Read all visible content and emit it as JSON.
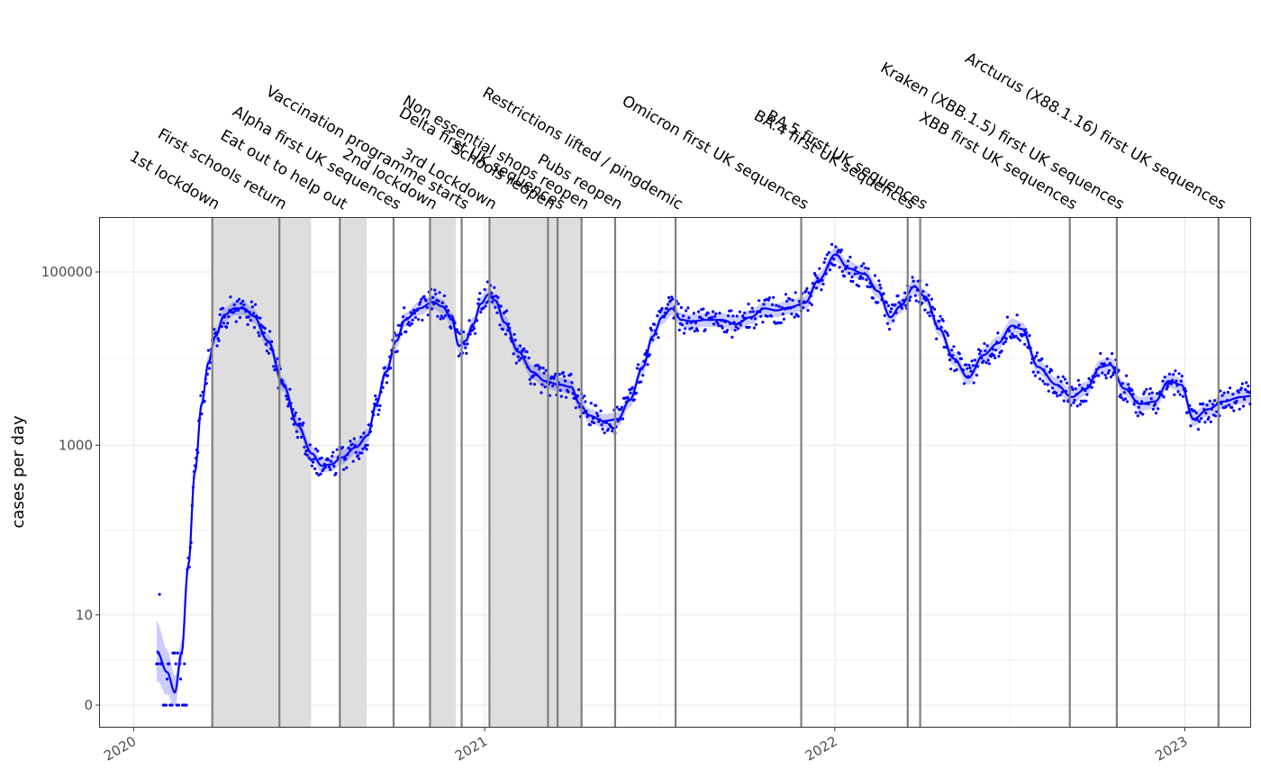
{
  "chart_data": {
    "type": "line",
    "title": "",
    "xlabel": "",
    "ylabel": "cases per day",
    "y_scale": "log (ggplot pseudo-log, breaks 0 / 10 / 1000 / 100000)",
    "y_ticks": [
      0,
      10,
      1000,
      100000
    ],
    "x_range": [
      "2019-11-26",
      "2023-03-11"
    ],
    "x_ticks": [
      {
        "date": "2020-01-01",
        "label": "2020"
      },
      {
        "date": "2021-01-01",
        "label": "2021"
      },
      {
        "date": "2022-01-01",
        "label": "2022"
      },
      {
        "date": "2023-01-01",
        "label": "2023"
      }
    ],
    "grid": true,
    "lockdown_periods": [
      {
        "start": "2020-03-23",
        "end": "2020-07-04"
      },
      {
        "start": "2020-08-03",
        "end": "2020-08-31"
      },
      {
        "start": "2020-11-05",
        "end": "2020-12-02"
      },
      {
        "start": "2021-01-06",
        "end": "2021-04-12"
      }
    ],
    "events": [
      {
        "date": "2020-03-23",
        "label": "1st lockdown"
      },
      {
        "date": "2020-06-01",
        "label": "First schools return"
      },
      {
        "date": "2020-08-03",
        "label": "Eat out to help out"
      },
      {
        "date": "2020-09-28",
        "label": "Alpha first UK sequences"
      },
      {
        "date": "2020-11-05",
        "label": "2nd lockdown"
      },
      {
        "date": "2020-12-08",
        "label": "Vaccination programme starts"
      },
      {
        "date": "2021-01-06",
        "label": "3rd Lockdown"
      },
      {
        "date": "2021-03-08",
        "label": "Schools reopen"
      },
      {
        "date": "2021-03-18",
        "label": "Delta first UK sequences"
      },
      {
        "date": "2021-04-12",
        "label": "Non essential shops reopen"
      },
      {
        "date": "2021-05-17",
        "label": "Pubs reopen"
      },
      {
        "date": "2021-07-19",
        "label": "Restrictions lifted / pingdemic"
      },
      {
        "date": "2021-11-27",
        "label": "Omicron first UK sequences"
      },
      {
        "date": "2022-03-18",
        "label": "BA.4 first UK sequences"
      },
      {
        "date": "2022-03-31",
        "label": "BA.5 first UK sequences"
      },
      {
        "date": "2022-09-03",
        "label": "XBB first UK sequences"
      },
      {
        "date": "2022-10-22",
        "label": "Kraken (XBB.1.5) first UK sequences"
      },
      {
        "date": "2023-02-05",
        "label": "Arcturus (X88.1.16) first UK sequences"
      }
    ],
    "series": [
      {
        "kind": "smoothed trend",
        "color": "#0000ff",
        "points": [
          [
            "2020-01-25",
            3.2
          ],
          [
            "2020-02-05",
            1.4
          ],
          [
            "2020-02-13",
            0.4
          ],
          [
            "2020-02-20",
            3
          ],
          [
            "2020-02-27",
            40
          ],
          [
            "2020-03-05",
            500
          ],
          [
            "2020-03-12",
            3000
          ],
          [
            "2020-03-19",
            9000
          ],
          [
            "2020-03-26",
            18000
          ],
          [
            "2020-04-05",
            32000
          ],
          [
            "2020-04-15",
            38000
          ],
          [
            "2020-04-25",
            38000
          ],
          [
            "2020-05-05",
            31000
          ],
          [
            "2020-05-20",
            16000
          ],
          [
            "2020-06-05",
            5000
          ],
          [
            "2020-06-20",
            1700
          ],
          [
            "2020-07-05",
            800
          ],
          [
            "2020-07-15",
            580
          ],
          [
            "2020-07-25",
            600
          ],
          [
            "2020-08-05",
            720
          ],
          [
            "2020-08-20",
            950
          ],
          [
            "2020-09-01",
            1300
          ],
          [
            "2020-09-10",
            3000
          ],
          [
            "2020-09-20",
            7000
          ],
          [
            "2020-10-01",
            16000
          ],
          [
            "2020-10-10",
            28000
          ],
          [
            "2020-10-25",
            38000
          ],
          [
            "2020-11-08",
            45000
          ],
          [
            "2020-11-18",
            40000
          ],
          [
            "2020-11-28",
            28000
          ],
          [
            "2020-12-05",
            14000
          ],
          [
            "2020-12-12",
            16000
          ],
          [
            "2020-12-20",
            25000
          ],
          [
            "2020-12-28",
            43000
          ],
          [
            "2021-01-05",
            55000
          ],
          [
            "2021-01-12",
            47000
          ],
          [
            "2021-01-22",
            26000
          ],
          [
            "2021-02-05",
            12000
          ],
          [
            "2021-02-20",
            7000
          ],
          [
            "2021-03-05",
            5500
          ],
          [
            "2021-03-20",
            5000
          ],
          [
            "2021-04-01",
            4700
          ],
          [
            "2021-04-10",
            3000
          ],
          [
            "2021-04-20",
            2200
          ],
          [
            "2021-05-05",
            1900
          ],
          [
            "2021-05-20",
            2000
          ],
          [
            "2021-06-01",
            3300
          ],
          [
            "2021-06-15",
            8000
          ],
          [
            "2021-06-25",
            18000
          ],
          [
            "2021-07-05",
            30000
          ],
          [
            "2021-07-15",
            38000
          ],
          [
            "2021-07-25",
            28000
          ],
          [
            "2021-08-05",
            27000
          ],
          [
            "2021-08-20",
            28000
          ],
          [
            "2021-09-05",
            28000
          ],
          [
            "2021-09-20",
            25000
          ],
          [
            "2021-10-05",
            30000
          ],
          [
            "2021-10-20",
            38000
          ],
          [
            "2021-11-01",
            36000
          ],
          [
            "2021-11-15",
            39000
          ],
          [
            "2021-12-01",
            44000
          ],
          [
            "2021-12-15",
            80000
          ],
          [
            "2022-01-02",
            160000
          ],
          [
            "2022-01-15",
            110000
          ],
          [
            "2022-02-01",
            95000
          ],
          [
            "2022-02-15",
            60000
          ],
          [
            "2022-02-28",
            30000
          ],
          [
            "2022-03-10",
            40000
          ],
          [
            "2022-03-25",
            68000
          ],
          [
            "2022-04-05",
            52000
          ],
          [
            "2022-04-20",
            22000
          ],
          [
            "2022-05-05",
            10000
          ],
          [
            "2022-05-20",
            6000
          ],
          [
            "2022-06-05",
            11000
          ],
          [
            "2022-06-20",
            15000
          ],
          [
            "2022-07-05",
            24000
          ],
          [
            "2022-07-15",
            22000
          ],
          [
            "2022-08-01",
            8000
          ],
          [
            "2022-08-20",
            5000
          ],
          [
            "2022-09-05",
            3600
          ],
          [
            "2022-09-20",
            4500
          ],
          [
            "2022-10-05",
            8000
          ],
          [
            "2022-10-15",
            8500
          ],
          [
            "2022-10-30",
            4500
          ],
          [
            "2022-11-15",
            3000
          ],
          [
            "2022-12-01",
            3200
          ],
          [
            "2022-12-15",
            5500
          ],
          [
            "2022-12-28",
            5000
          ],
          [
            "2023-01-10",
            2000
          ],
          [
            "2023-01-25",
            2600
          ],
          [
            "2023-02-10",
            3200
          ],
          [
            "2023-03-01",
            3600
          ],
          [
            "2023-03-10",
            3700
          ]
        ]
      }
    ]
  }
}
